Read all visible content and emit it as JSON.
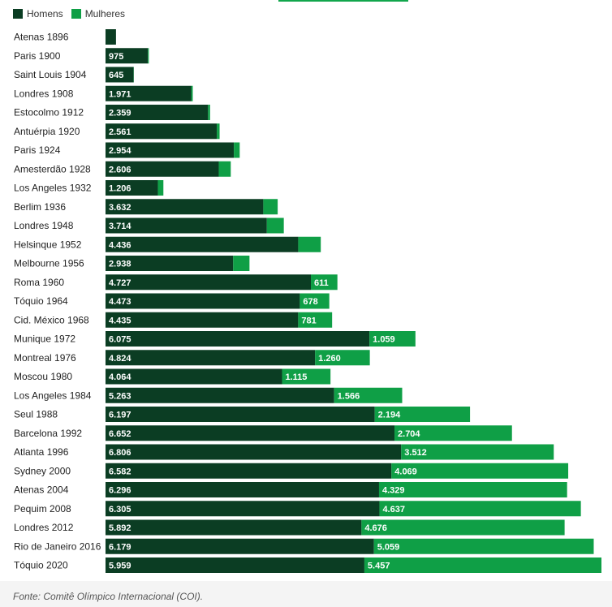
{
  "legend": {
    "men_label": "Homens",
    "women_label": "Mulheres"
  },
  "source": "Fonte: Comitê Olímpico Internacional (COI).",
  "colors": {
    "men": "#0b3d23",
    "women": "#0f9f46",
    "accent": "#11a64c",
    "footer_bg": "#f4f4f4"
  },
  "chart_data": {
    "type": "bar",
    "orientation": "horizontal",
    "stacked": true,
    "categories": [
      "Atenas 1896",
      "Paris 1900",
      "Saint Louis 1904",
      "Londres 1908",
      "Estocolmo 1912",
      "Antuérpia 1920",
      "Paris 1924",
      "Amesterdão 1928",
      "Los Angeles 1932",
      "Berlim 1936",
      "Londres 1948",
      "Helsinque 1952",
      "Melbourne 1956",
      "Roma 1960",
      "Tóquio 1964",
      "Cid. México 1968",
      "Munique 1972",
      "Montreal 1976",
      "Moscou 1980",
      "Los Angeles 1984",
      "Seul 1988",
      "Barcelona 1992",
      "Atlanta 1996",
      "Sydney 2000",
      "Atenas 2004",
      "Pequim 2008",
      "Londres 2012",
      "Rio de Janeiro 2016",
      "Tóquio 2020"
    ],
    "series": [
      {
        "name": "Homens",
        "values": [
          241,
          975,
          645,
          1971,
          2359,
          2561,
          2954,
          2606,
          1206,
          3632,
          3714,
          4436,
          2938,
          4727,
          4473,
          4435,
          6075,
          4824,
          4064,
          5263,
          6197,
          6652,
          6806,
          6582,
          6296,
          6305,
          5892,
          6179,
          5959
        ]
      },
      {
        "name": "Mulheres",
        "values": [
          0,
          22,
          6,
          37,
          48,
          65,
          135,
          277,
          126,
          331,
          390,
          519,
          376,
          611,
          678,
          781,
          1059,
          1260,
          1115,
          1566,
          2194,
          2704,
          3512,
          4069,
          4329,
          4637,
          4676,
          5059,
          5457
        ]
      }
    ],
    "data_labels": {
      "Homens": [
        "",
        "975",
        "645",
        "1.971",
        "2.359",
        "2.561",
        "2.954",
        "2.606",
        "1.206",
        "3.632",
        "3.714",
        "4.436",
        "2.938",
        "4.727",
        "4.473",
        "4.435",
        "6.075",
        "4.824",
        "4.064",
        "5.263",
        "6.197",
        "6.652",
        "6.806",
        "6.582",
        "6.296",
        "6.305",
        "5.892",
        "6.179",
        "5.959"
      ],
      "Mulheres": [
        "",
        "",
        "",
        "",
        "",
        "",
        "",
        "",
        "",
        "",
        "",
        "",
        "",
        "611",
        "678",
        "781",
        "1.059",
        "1.260",
        "1.115",
        "1.566",
        "2.194",
        "2.704",
        "3.512",
        "4.069",
        "4.329",
        "4.637",
        "4.676",
        "5.059",
        "5.457"
      ]
    },
    "grid": false,
    "legend_position": "top-left"
  }
}
